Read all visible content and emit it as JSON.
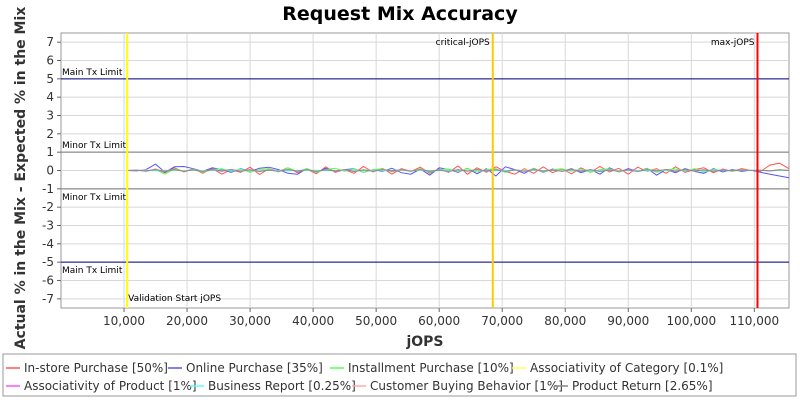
{
  "chart_data": {
    "type": "line",
    "title": "Request Mix Accuracy",
    "xlabel": "jOPS",
    "ylabel": "Actual % in the Mix - Expected % in the Mix",
    "xlim": [
      0,
      115500
    ],
    "ylim": [
      -7.5,
      7.5
    ],
    "x_ticks": [
      10000,
      20000,
      30000,
      40000,
      50000,
      60000,
      70000,
      80000,
      90000,
      100000,
      110000
    ],
    "x_tick_labels": [
      "10,000",
      "20,000",
      "30,000",
      "40,000",
      "50,000",
      "60,000",
      "70,000",
      "80,000",
      "90,000",
      "100,000",
      "110,000"
    ],
    "y_ticks": [
      7,
      6,
      5,
      4,
      3,
      2,
      1,
      0,
      -1,
      -2,
      -3,
      -4,
      -5,
      -6,
      -7
    ],
    "y_tick_labels": [
      "7",
      "6",
      "5",
      "4",
      "3",
      "2",
      "1",
      "0",
      "-1",
      "-2",
      "-3",
      "-4",
      "-5",
      "-6",
      "-7"
    ],
    "grid": true,
    "legend_position": "bottom",
    "limits": [
      {
        "label": "Main Tx Limit",
        "value": 5
      },
      {
        "label": "Minor Tx Limit",
        "value": 1
      },
      {
        "label": "Minor Tx Limit",
        "value": -1
      },
      {
        "label": "Main Tx Limit",
        "value": -5
      }
    ],
    "markers": [
      {
        "label": "Validation Start jOPS",
        "x": 10500,
        "color": "#ffff00"
      },
      {
        "label": "critical-jOPS",
        "x": 68500,
        "color": "#ffc800"
      },
      {
        "label": "max-jOPS",
        "x": 110500,
        "color": "#ff0000"
      }
    ],
    "series_x": [
      10500,
      12000,
      13500,
      15000,
      16500,
      18000,
      19500,
      21000,
      22500,
      24000,
      25500,
      27000,
      28500,
      30000,
      31500,
      33000,
      34500,
      36000,
      37500,
      39000,
      40500,
      42000,
      43500,
      45000,
      46500,
      48000,
      49500,
      51000,
      52500,
      54000,
      55500,
      57000,
      58500,
      60000,
      61500,
      63000,
      64500,
      66000,
      67500,
      69000,
      70500,
      72000,
      73500,
      75000,
      76500,
      78000,
      79500,
      81000,
      82500,
      84000,
      85500,
      87000,
      88500,
      90000,
      91500,
      93000,
      94500,
      96000,
      97500,
      99000,
      100500,
      102000,
      103500,
      105000,
      106500,
      108000,
      109500,
      111000,
      112500,
      114000,
      115500
    ],
    "series": [
      {
        "name": "In-store Purchase [50%]",
        "color": "#ff5555",
        "values": [
          0,
          0.02,
          -0.05,
          0.08,
          -0.12,
          0.15,
          -0.08,
          0.1,
          -0.15,
          0.12,
          -0.2,
          0.05,
          -0.1,
          0.18,
          -0.22,
          0.1,
          -0.05,
          0.15,
          -0.12,
          0.08,
          -0.18,
          0.2,
          -0.1,
          0.05,
          -0.15,
          0.22,
          -0.08,
          0.12,
          -0.2,
          0.1,
          -0.05,
          0.18,
          -0.15,
          0.08,
          -0.1,
          0.25,
          -0.2,
          0.15,
          -0.1,
          0.2,
          -0.05,
          -0.2,
          0.1,
          -0.15,
          0.2,
          -0.12,
          0.08,
          -0.18,
          0.15,
          -0.1,
          0.22,
          -0.08,
          0.12,
          -0.2,
          0.18,
          -0.05,
          0.1,
          -0.15,
          0.2,
          -0.1,
          0.05,
          0.15,
          -0.12,
          0.08,
          -0.05,
          0.1,
          0,
          -0.05,
          0.3,
          0.4,
          0.1
        ]
      },
      {
        "name": "Online Purchase [35%]",
        "color": "#5555ff",
        "values": [
          0,
          -0.02,
          0.05,
          0.35,
          -0.1,
          0.2,
          0.22,
          0.1,
          -0.05,
          0.15,
          0.05,
          -0.1,
          0.1,
          -0.05,
          0.12,
          0.18,
          0.05,
          -0.15,
          -0.2,
          0.1,
          -0.1,
          0.12,
          -0.05,
          0.05,
          0.1,
          -0.1,
          0.05,
          -0.05,
          0.12,
          -0.12,
          -0.2,
          0.08,
          -0.25,
          0.15,
          0.05,
          -0.1,
          0.12,
          -0.18,
          0.1,
          -0.3,
          0.2,
          0.05,
          -0.15,
          0.12,
          -0.1,
          0.08,
          -0.05,
          0.1,
          -0.12,
          0.05,
          -0.2,
          0.15,
          -0.08,
          0.1,
          -0.05,
          0.12,
          -0.25,
          0.05,
          -0.12,
          0.1,
          -0.05,
          -0.15,
          0.1,
          -0.08,
          0.05,
          -0.05,
          0.02,
          -0.1,
          -0.2,
          -0.3,
          -0.4
        ]
      },
      {
        "name": "Installment Purchase [10%]",
        "color": "#55ff55",
        "values": [
          0,
          0.01,
          -0.02,
          0.05,
          -0.2,
          0.1,
          -0.05,
          0.08,
          -0.1,
          0.05,
          0.1,
          -0.05,
          0.08,
          -0.1,
          0.05,
          0.1,
          -0.08,
          0.15,
          -0.05,
          0.1,
          -0.1,
          0.05,
          0.12,
          -0.05,
          0.08,
          -0.1,
          0.05,
          0.1,
          -0.08,
          0.05,
          -0.05,
          0.1,
          -0.1,
          0.05,
          0.08,
          -0.05,
          0.1,
          -0.08,
          0.05,
          0.1,
          -0.1,
          0.05,
          -0.05,
          0.1,
          -0.08,
          0.05,
          0.1,
          -0.05,
          0.08,
          -0.1,
          0.05,
          0.1,
          -0.08,
          0.05,
          -0.05,
          0.1,
          -0.1,
          0.05,
          0.08,
          -0.05,
          0.1,
          -0.08,
          0.05,
          0.02,
          -0.05,
          0.05,
          0,
          0.02,
          -0.02,
          0.05,
          0
        ]
      },
      {
        "name": "Associativity of Category [0.1%]",
        "color": "#ffff55",
        "values": [
          0,
          0,
          0.01,
          -0.01,
          0.02,
          -0.02,
          0.01,
          0,
          -0.01,
          0.02,
          -0.01,
          0,
          0.01,
          -0.02,
          0.01,
          0,
          -0.01,
          0.02,
          0,
          -0.01,
          0.01,
          0,
          -0.02,
          0.01,
          0,
          0.01,
          -0.01,
          0,
          0.02,
          -0.01,
          0,
          0.01,
          -0.01,
          0,
          0.01,
          -0.02,
          0.01,
          0,
          -0.01,
          0.01,
          0,
          -0.01,
          0.02,
          0,
          -0.01,
          0.01,
          0,
          -0.01,
          0.01,
          0,
          -0.02,
          0.01,
          0,
          0.01,
          -0.01,
          0,
          0.02,
          -0.01,
          0,
          0.01,
          -0.01,
          0,
          0.01,
          0,
          -0.01,
          0,
          0.01,
          0,
          0,
          0.01,
          0
        ]
      },
      {
        "name": "Associativity of Product [1%]",
        "color": "#ff55ff",
        "values": [
          0,
          0.01,
          -0.02,
          0.03,
          -0.05,
          0.04,
          -0.03,
          0.05,
          -0.04,
          0.03,
          -0.05,
          0.04,
          -0.02,
          0.05,
          -0.04,
          0.03,
          -0.05,
          0.04,
          -0.03,
          0.02,
          -0.04,
          0.05,
          -0.03,
          0.04,
          -0.05,
          0.03,
          -0.02,
          0.04,
          -0.05,
          0.03,
          -0.04,
          0.05,
          -0.02,
          0.03,
          -0.04,
          0.05,
          -0.03,
          0.04,
          -0.05,
          0.03,
          -0.02,
          0.04,
          -0.03,
          0.05,
          -0.04,
          0.02,
          -0.03,
          0.04,
          -0.05,
          0.03,
          -0.02,
          0.04,
          -0.03,
          0.05,
          -0.04,
          0.03,
          -0.02,
          0.04,
          -0.05,
          0.03,
          -0.02,
          0.04,
          -0.03,
          0.02,
          -0.01,
          0.02,
          0,
          0.01,
          -0.02,
          0.03,
          0
        ]
      },
      {
        "name": "Business Report [0.25%]",
        "color": "#55ffff",
        "values": [
          0,
          0,
          0.01,
          -0.02,
          0.01,
          0,
          -0.01,
          0.02,
          -0.01,
          0,
          0.01,
          -0.01,
          0.02,
          0,
          -0.01,
          0.01,
          0,
          -0.02,
          0.01,
          0,
          0.01,
          -0.01,
          0,
          0.02,
          -0.01,
          0,
          0.01,
          -0.01,
          0,
          0.02,
          -0.02,
          0.01,
          0,
          -0.01,
          0.01,
          0,
          -0.01,
          0.02,
          0,
          -0.01,
          0.01,
          0,
          -0.02,
          0.01,
          0,
          0.01,
          -0.01,
          0,
          0.02,
          -0.01,
          0,
          0.01,
          -0.01,
          0,
          0.01,
          -0.02,
          0.01,
          0,
          -0.01,
          0.01,
          0,
          -0.01,
          0.01,
          0,
          -0.01,
          0,
          0.01,
          0,
          -0.01,
          0.01,
          0
        ]
      },
      {
        "name": "Customer Buying Behavior [1%]",
        "color": "#ffaaaa",
        "values": [
          0,
          0.02,
          -0.03,
          0.05,
          -0.04,
          0.06,
          -0.05,
          0.04,
          -0.06,
          0.05,
          -0.03,
          0.06,
          -0.05,
          0.04,
          -0.06,
          0.03,
          -0.05,
          0.06,
          -0.04,
          0.05,
          -0.06,
          0.04,
          -0.03,
          0.05,
          -0.06,
          0.04,
          -0.05,
          0.06,
          -0.03,
          0.05,
          -0.04,
          0.06,
          -0.05,
          0.03,
          -0.06,
          0.05,
          -0.04,
          0.06,
          -0.03,
          0.05,
          -0.06,
          0.04,
          -0.05,
          0.06,
          -0.04,
          0.03,
          -0.05,
          0.06,
          -0.04,
          0.05,
          -0.06,
          0.03,
          -0.05,
          0.04,
          -0.06,
          0.05,
          -0.03,
          0.06,
          -0.04,
          0.05,
          -0.03,
          0.04,
          -0.05,
          0.03,
          -0.02,
          0.03,
          0,
          0.02,
          -0.03,
          0.04,
          0
        ]
      },
      {
        "name": "Product Return [2.65%]",
        "color": "#888888",
        "values": [
          0,
          0.01,
          -0.02,
          0.04,
          -0.03,
          0.05,
          -0.04,
          0.03,
          -0.05,
          0.04,
          -0.02,
          0.05,
          -0.04,
          0.03,
          -0.05,
          0.02,
          -0.04,
          0.05,
          -0.03,
          0.04,
          -0.05,
          0.03,
          -0.02,
          0.04,
          -0.05,
          0.03,
          -0.04,
          0.05,
          -0.02,
          0.04,
          -0.03,
          0.05,
          -0.04,
          0.02,
          -0.05,
          0.04,
          -0.03,
          0.05,
          -0.02,
          0.04,
          -0.05,
          0.03,
          -0.04,
          0.05,
          -0.03,
          0.02,
          -0.04,
          0.05,
          -0.03,
          0.04,
          -0.05,
          0.02,
          -0.04,
          0.03,
          -0.05,
          0.04,
          -0.02,
          0.05,
          -0.03,
          0.04,
          -0.02,
          0.03,
          -0.04,
          0.02,
          -0.01,
          0.02,
          0,
          0.01,
          -0.02,
          0.03,
          0
        ]
      }
    ]
  }
}
